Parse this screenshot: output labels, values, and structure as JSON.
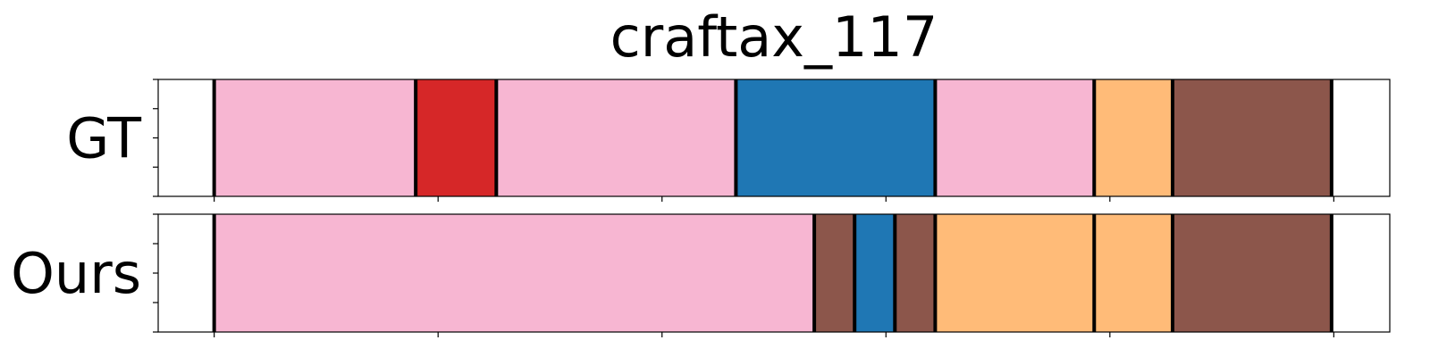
{
  "chart_data": {
    "type": "segmentation-timeline",
    "title": "craftax_117",
    "xlim": [
      0,
      550
    ],
    "x_ticks": [
      25,
      125,
      225,
      325,
      425,
      525
    ],
    "y_ticks_per_row": 5,
    "grid": false,
    "boundary_color": "#000000",
    "rows": [
      {
        "label": "GT",
        "segments": [
          {
            "start": 25,
            "end": 115,
            "color": "#f7b6d2"
          },
          {
            "start": 115,
            "end": 151,
            "color": "#d62728"
          },
          {
            "start": 151,
            "end": 258,
            "color": "#f7b6d2"
          },
          {
            "start": 258,
            "end": 347,
            "color": "#1f77b4"
          },
          {
            "start": 347,
            "end": 418,
            "color": "#f7b6d2"
          },
          {
            "start": 418,
            "end": 453,
            "color": "#ffbb78"
          },
          {
            "start": 453,
            "end": 524,
            "color": "#8c564b"
          }
        ]
      },
      {
        "label": "Ours",
        "segments": [
          {
            "start": 25,
            "end": 293,
            "color": "#f7b6d2"
          },
          {
            "start": 293,
            "end": 311,
            "color": "#8c564b"
          },
          {
            "start": 311,
            "end": 329,
            "color": "#1f77b4"
          },
          {
            "start": 329,
            "end": 347,
            "color": "#8c564b"
          },
          {
            "start": 347,
            "end": 418,
            "color": "#ffbb78"
          },
          {
            "start": 418,
            "end": 453,
            "color": "#ffbb78"
          },
          {
            "start": 453,
            "end": 524,
            "color": "#8c564b"
          }
        ]
      }
    ]
  }
}
